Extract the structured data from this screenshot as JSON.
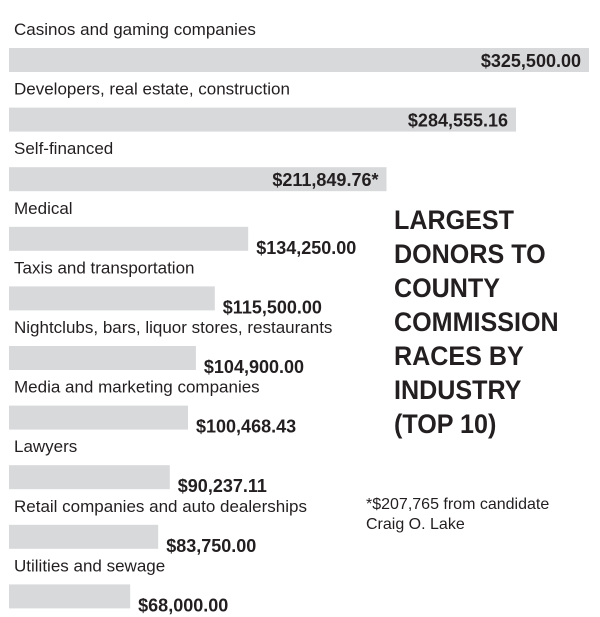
{
  "chart_data": {
    "type": "bar",
    "orientation": "horizontal",
    "title_lines": [
      "LARGEST",
      "DONORS TO",
      "COUNTY",
      "COMMISSION",
      "RACES BY",
      "INDUSTRY",
      "(TOP 10)"
    ],
    "categories": [
      "Casinos and gaming companies",
      "Developers, real estate, construction",
      "Self-financed",
      "Medical",
      "Taxis and transportation",
      "Nightclubs, bars, liquor stores, restaurants",
      "Media and marketing companies",
      "Lawyers",
      "Retail companies and auto dealerships",
      "Utilities and sewage"
    ],
    "values": [
      325500.0,
      284555.16,
      211849.76,
      134250.0,
      115500.0,
      104900.0,
      100468.43,
      90237.11,
      83750.0,
      68000.0
    ],
    "value_labels": [
      "$325,500.00",
      "$284,555.16",
      "$211,849.76*",
      "$134,250.00",
      "$115,500.00",
      "$104,900.00",
      "$100,468.43",
      "$90,237.11",
      "$83,750.00",
      "$68,000.00"
    ],
    "footnote_lines": [
      "*$207,765 from candidate",
      "Craig O. Lake"
    ],
    "bar_color": "#d8d9db",
    "text_color": "#231f20"
  }
}
